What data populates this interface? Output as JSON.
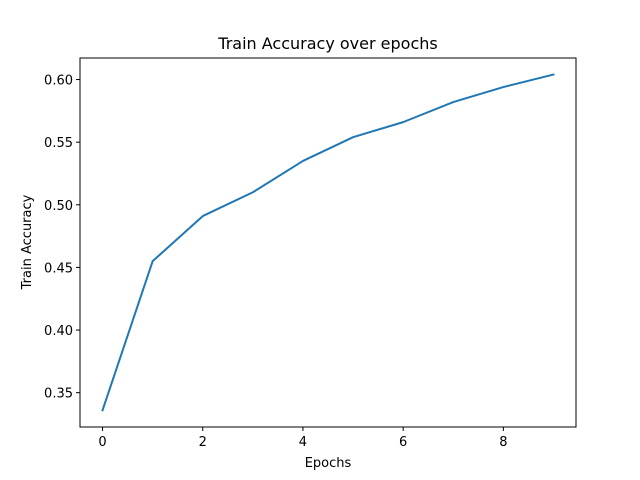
{
  "chart_data": {
    "type": "line",
    "title": "Train Accuracy over epochs",
    "xlabel": "Epochs",
    "ylabel": "Train Accuracy",
    "xlim": [
      -0.45,
      9.45
    ],
    "ylim": [
      0.3226,
      0.6172
    ],
    "x_ticks": [
      0,
      2,
      4,
      6,
      8
    ],
    "x_tick_labels": [
      "0",
      "2",
      "4",
      "6",
      "8"
    ],
    "y_ticks": [
      0.35,
      0.4,
      0.45,
      0.5,
      0.55,
      0.6
    ],
    "y_tick_labels": [
      "0.35",
      "0.40",
      "0.45",
      "0.50",
      "0.55",
      "0.60"
    ],
    "grid": false,
    "series": [
      {
        "color": "#1f77b4",
        "x": [
          0,
          1,
          2,
          3,
          4,
          5,
          6,
          7,
          8,
          9
        ],
        "values": [
          0.336,
          0.455,
          0.491,
          0.51,
          0.535,
          0.554,
          0.566,
          0.582,
          0.594,
          0.604
        ]
      }
    ]
  }
}
